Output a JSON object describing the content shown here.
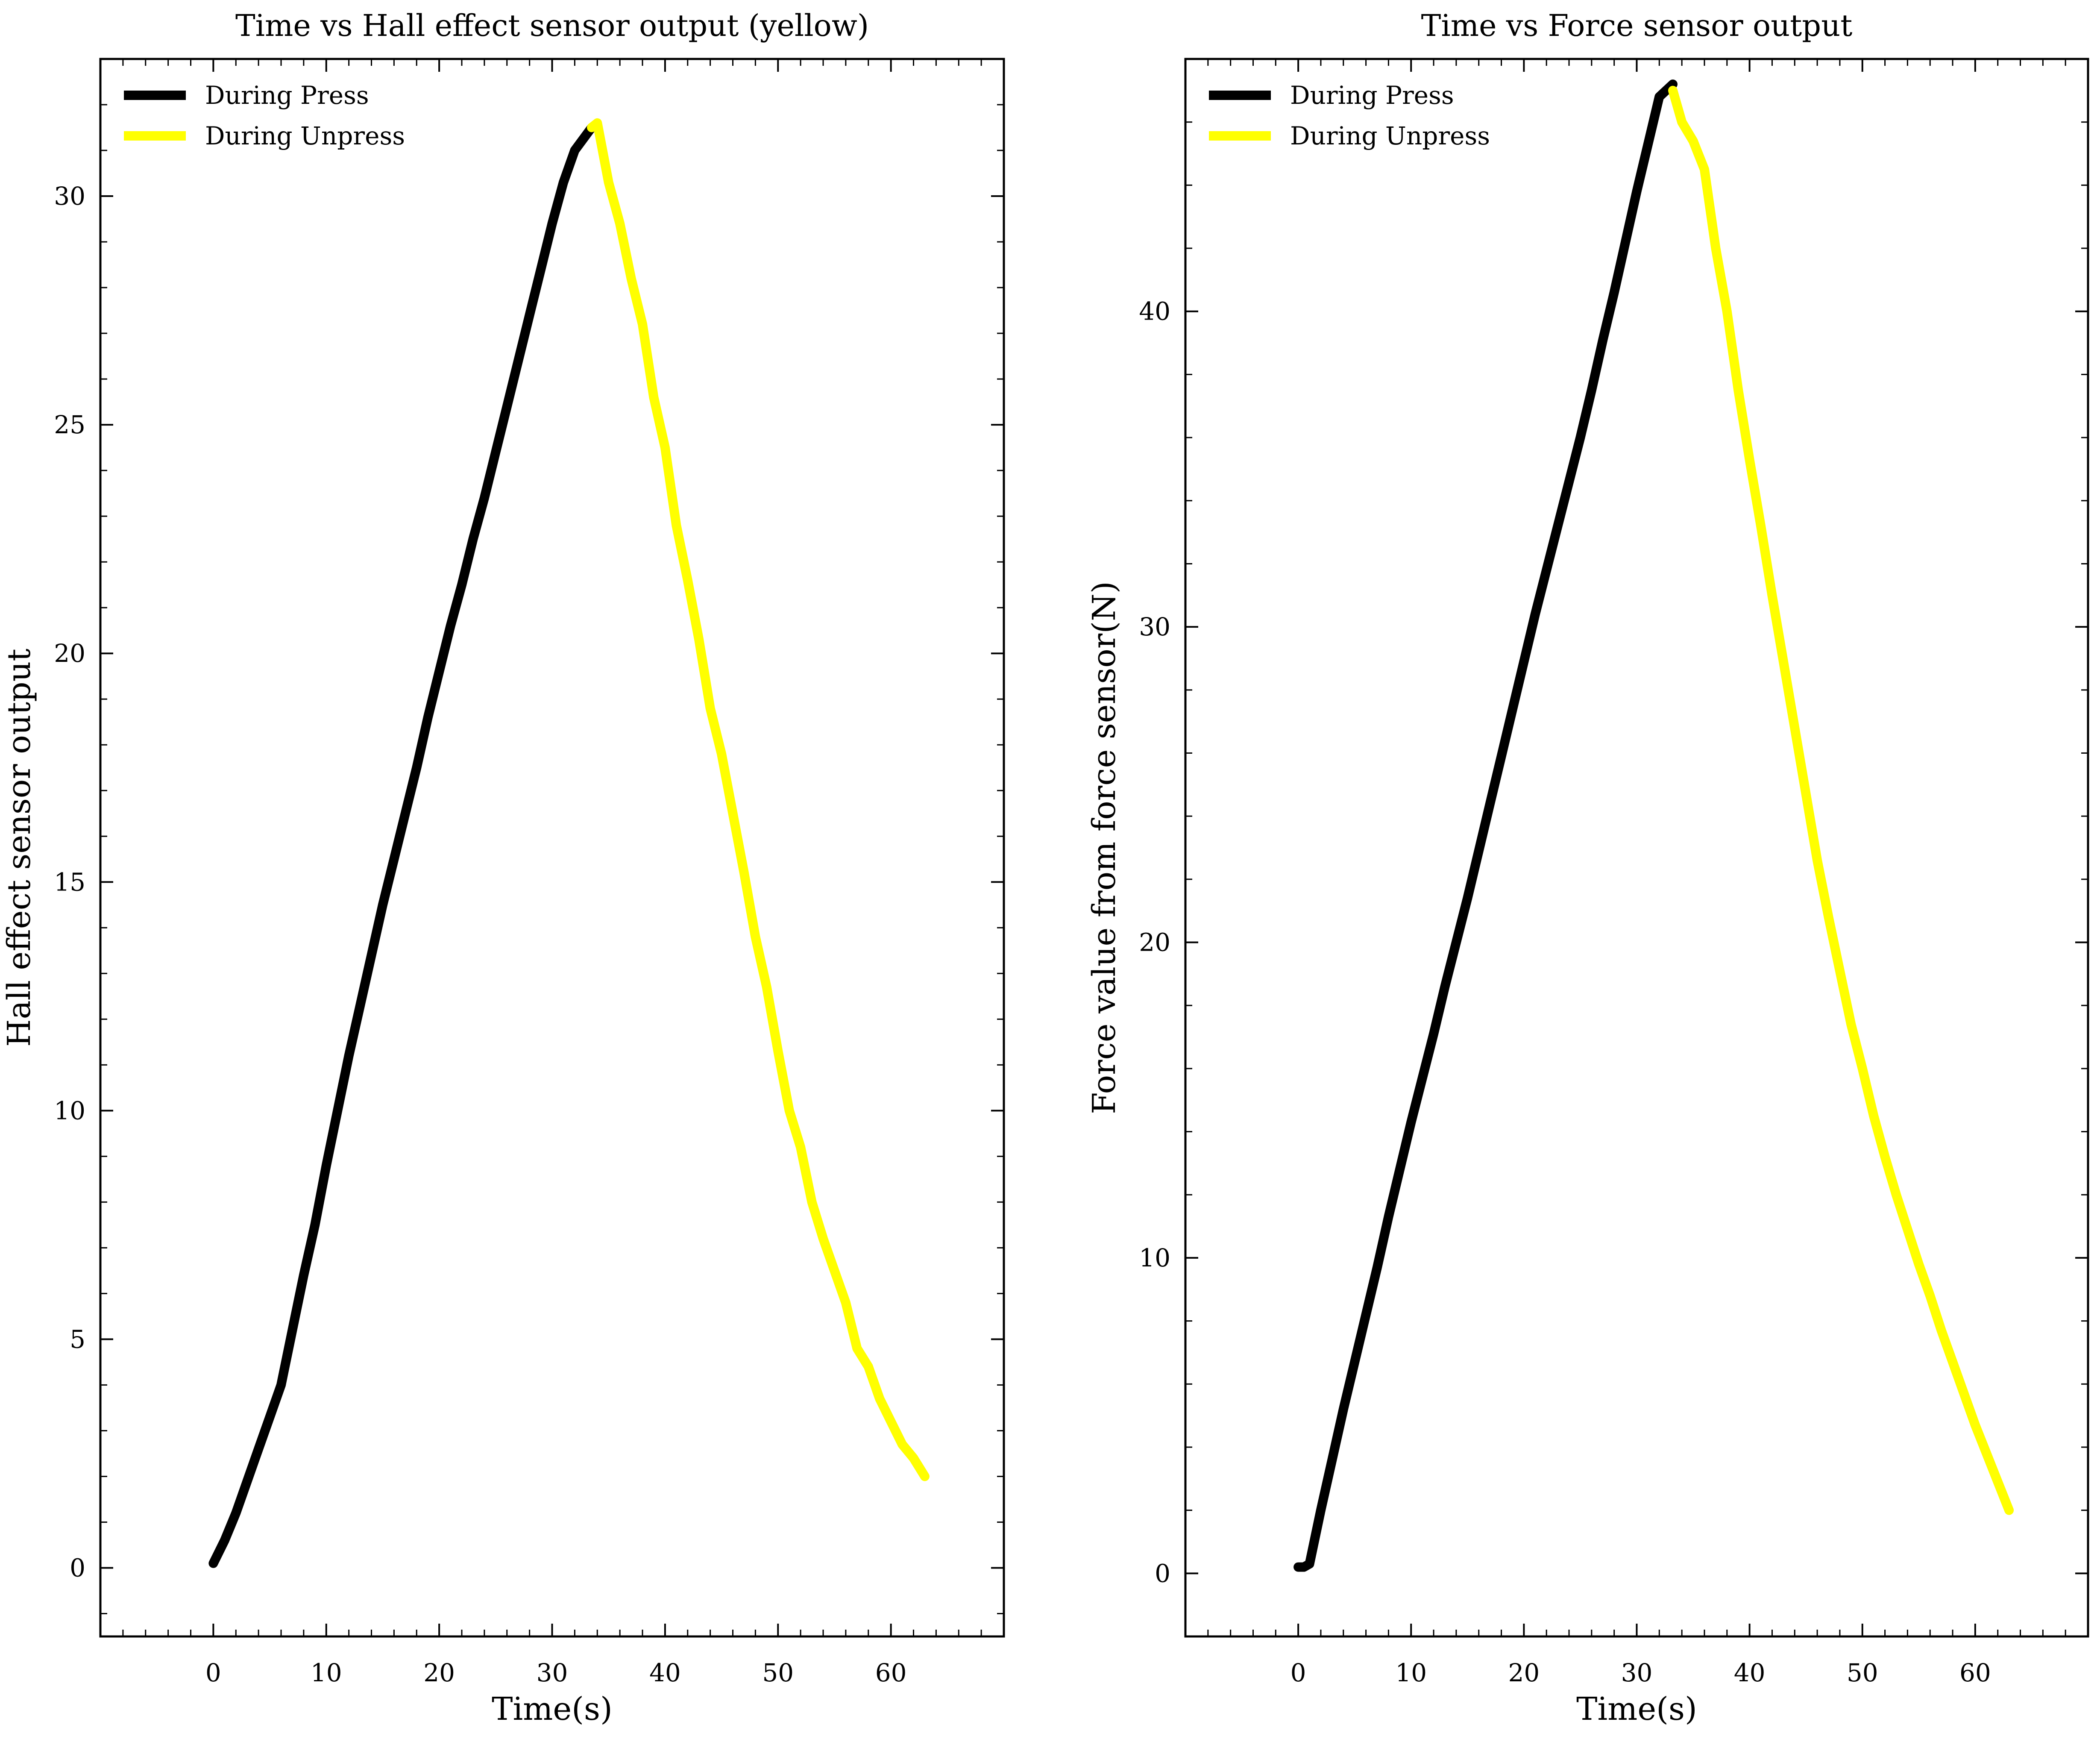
{
  "chart_data": [
    {
      "type": "line",
      "title": "Time vs Hall effect sensor output (yellow)",
      "xlabel": "Time(s)",
      "ylabel": "Hall effect sensor output",
      "xlim": [
        -10,
        70
      ],
      "ylim": [
        -1.5,
        33
      ],
      "xticks": [
        0,
        10,
        20,
        30,
        40,
        50,
        60
      ],
      "yticks": [
        0,
        5,
        10,
        15,
        20,
        25,
        30
      ],
      "xtick_labels": [
        "0",
        "10",
        "20",
        "30",
        "40",
        "50",
        "60"
      ],
      "ytick_labels": [
        "0",
        "5",
        "10",
        "15",
        "20",
        "25",
        "30"
      ],
      "grid": false,
      "legend_position": "top-left",
      "series": [
        {
          "name": "During Press",
          "color": "#000000",
          "x": [
            0,
            1,
            2,
            3,
            4,
            5,
            6,
            7,
            8,
            9,
            10,
            11,
            12,
            13,
            14,
            15,
            16,
            17,
            18,
            19,
            20,
            21,
            22,
            23,
            24,
            25,
            26,
            27,
            28,
            29,
            30,
            31,
            32,
            33.5
          ],
          "y": [
            0.1,
            0.6,
            1.2,
            1.9,
            2.6,
            3.3,
            4.0,
            5.2,
            6.4,
            7.5,
            8.8,
            10.0,
            11.2,
            12.3,
            13.4,
            14.5,
            15.5,
            16.5,
            17.5,
            18.6,
            19.6,
            20.6,
            21.5,
            22.5,
            23.4,
            24.4,
            25.4,
            26.4,
            27.4,
            28.4,
            29.4,
            30.3,
            31.0,
            31.5
          ]
        },
        {
          "name": "During Unpress",
          "color": "#ffff00",
          "x": [
            33.5,
            34,
            35,
            36,
            37,
            38,
            39,
            40,
            41,
            42,
            43,
            44,
            45,
            46,
            47,
            48,
            49,
            50,
            51,
            52,
            53,
            54,
            55,
            56,
            57,
            58,
            59,
            60,
            61,
            62,
            63
          ],
          "y": [
            31.5,
            31.6,
            30.3,
            29.4,
            28.2,
            27.2,
            25.6,
            24.5,
            22.8,
            21.6,
            20.3,
            18.8,
            17.8,
            16.5,
            15.2,
            13.8,
            12.7,
            11.3,
            10.0,
            9.2,
            8.0,
            7.2,
            6.5,
            5.8,
            4.8,
            4.4,
            3.7,
            3.2,
            2.7,
            2.4,
            2.0
          ]
        }
      ]
    },
    {
      "type": "line",
      "title": "Time vs Force sensor output",
      "xlabel": "Time(s)",
      "ylabel": "Force value from force sensor(N)",
      "xlim": [
        -10,
        70
      ],
      "ylim": [
        -2,
        48
      ],
      "xticks": [
        0,
        10,
        20,
        30,
        40,
        50,
        60
      ],
      "yticks": [
        0,
        10,
        20,
        30,
        40
      ],
      "xtick_labels": [
        "0",
        "10",
        "20",
        "30",
        "40",
        "50",
        "60"
      ],
      "ytick_labels": [
        "0",
        "10",
        "20",
        "30",
        "40"
      ],
      "grid": false,
      "legend_position": "top-left",
      "series": [
        {
          "name": "During Press",
          "color": "#000000",
          "x": [
            0,
            0.5,
            1,
            2,
            3,
            4,
            5,
            6,
            7,
            8,
            9,
            10,
            11,
            12,
            13,
            14,
            15,
            16,
            17,
            18,
            19,
            20,
            21,
            22,
            23,
            24,
            25,
            26,
            27,
            28,
            29,
            30,
            31,
            32,
            33.2
          ],
          "y": [
            0.2,
            0.2,
            0.3,
            2.0,
            3.6,
            5.2,
            6.7,
            8.2,
            9.7,
            11.3,
            12.8,
            14.3,
            15.7,
            17.1,
            18.6,
            20.0,
            21.4,
            22.9,
            24.4,
            25.9,
            27.4,
            28.9,
            30.4,
            31.8,
            33.2,
            34.6,
            36.0,
            37.5,
            39.1,
            40.6,
            42.2,
            43.8,
            45.3,
            46.8,
            47.2
          ]
        },
        {
          "name": "During Unpress",
          "color": "#ffff00",
          "x": [
            33.2,
            34,
            35,
            36,
            37,
            38,
            39,
            40,
            41,
            42,
            43,
            44,
            45,
            46,
            47,
            48,
            49,
            50,
            51,
            52,
            53,
            54,
            55,
            56,
            57,
            58,
            59,
            60,
            61,
            62,
            63
          ],
          "y": [
            47.0,
            46.0,
            45.4,
            44.5,
            42.0,
            40.0,
            37.5,
            35.3,
            33.2,
            31.0,
            28.9,
            26.8,
            24.7,
            22.6,
            20.8,
            19.1,
            17.4,
            16.0,
            14.5,
            13.2,
            12.0,
            10.9,
            9.8,
            8.8,
            7.7,
            6.7,
            5.7,
            4.7,
            3.8,
            2.9,
            2.0
          ]
        }
      ]
    }
  ]
}
